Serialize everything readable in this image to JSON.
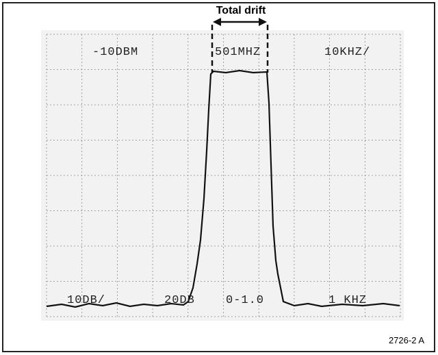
{
  "figure": {
    "annotation": "Total drift",
    "screen": {
      "reference_level": "-10DBM",
      "center_frequency": "501MHZ",
      "span": "10KHZ/",
      "vertical_scale": "10DB/",
      "attenuation": "20DB",
      "video_filter": "0-1.0",
      "resolution_bandwidth": "1 KHZ"
    },
    "figure_number": "2726-2 A"
  }
}
